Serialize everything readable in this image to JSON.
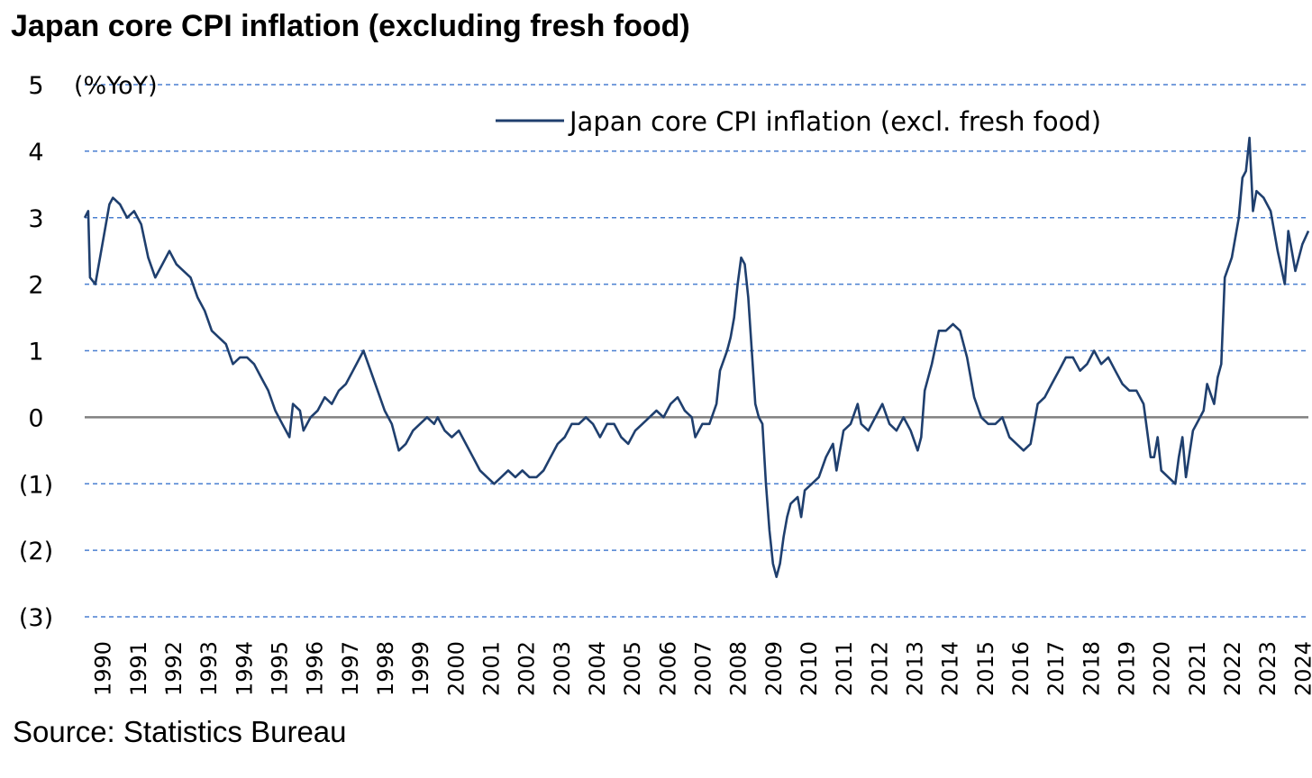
{
  "title": "Japan core CPI inflation (excluding fresh food)",
  "source": "Source: Statistics Bureau",
  "colors": {
    "series": "#1f3f6e",
    "grid": "#4a7fd0",
    "zero": "#808080"
  },
  "chart_data": {
    "type": "line",
    "unit": "(%YoY)",
    "ylim": [
      -3,
      5
    ],
    "xlim": [
      1990,
      2024.67
    ],
    "grid": "horizontal dashed",
    "legend": "top-right",
    "yticks": [
      5,
      4,
      3,
      2,
      1,
      0,
      -1,
      -2,
      -3
    ],
    "ytick_labels": [
      "5",
      "4",
      "3",
      "2",
      "1",
      "0",
      "(1)",
      "(2)",
      "(3)"
    ],
    "xticks": [
      "1990",
      "1991",
      "1992",
      "1993",
      "1994",
      "1995",
      "1996",
      "1997",
      "1998",
      "1999",
      "2000",
      "2001",
      "2002",
      "2003",
      "2004",
      "2005",
      "2006",
      "2007",
      "2008",
      "2009",
      "2010",
      "2011",
      "2012",
      "2013",
      "2014",
      "2015",
      "2016",
      "2017",
      "2018",
      "2019",
      "2020",
      "2021",
      "2022",
      "2023",
      "2024"
    ],
    "series": [
      {
        "name": "Japan core CPI inflation (excl. fresh food)",
        "points": [
          [
            1990.0,
            3.0
          ],
          [
            1990.1,
            3.1
          ],
          [
            1990.15,
            2.1
          ],
          [
            1990.3,
            2.0
          ],
          [
            1990.5,
            2.6
          ],
          [
            1990.7,
            3.2
          ],
          [
            1990.8,
            3.3
          ],
          [
            1991.0,
            3.2
          ],
          [
            1991.2,
            3.0
          ],
          [
            1991.4,
            3.1
          ],
          [
            1991.6,
            2.9
          ],
          [
            1991.8,
            2.4
          ],
          [
            1992.0,
            2.1
          ],
          [
            1992.2,
            2.3
          ],
          [
            1992.4,
            2.5
          ],
          [
            1992.6,
            2.3
          ],
          [
            1992.8,
            2.2
          ],
          [
            1993.0,
            2.1
          ],
          [
            1993.2,
            1.8
          ],
          [
            1993.4,
            1.6
          ],
          [
            1993.6,
            1.3
          ],
          [
            1993.8,
            1.2
          ],
          [
            1994.0,
            1.1
          ],
          [
            1994.2,
            0.8
          ],
          [
            1994.4,
            0.9
          ],
          [
            1994.6,
            0.9
          ],
          [
            1994.8,
            0.8
          ],
          [
            1995.0,
            0.6
          ],
          [
            1995.2,
            0.4
          ],
          [
            1995.4,
            0.1
          ],
          [
            1995.6,
            -0.1
          ],
          [
            1995.8,
            -0.3
          ],
          [
            1995.9,
            0.2
          ],
          [
            1996.1,
            0.1
          ],
          [
            1996.2,
            -0.2
          ],
          [
            1996.4,
            0.0
          ],
          [
            1996.6,
            0.1
          ],
          [
            1996.8,
            0.3
          ],
          [
            1997.0,
            0.2
          ],
          [
            1997.2,
            0.4
          ],
          [
            1997.4,
            0.5
          ],
          [
            1997.6,
            0.7
          ],
          [
            1997.8,
            0.9
          ],
          [
            1997.9,
            1.0
          ],
          [
            1998.1,
            0.7
          ],
          [
            1998.3,
            0.4
          ],
          [
            1998.5,
            0.1
          ],
          [
            1998.7,
            -0.1
          ],
          [
            1998.9,
            -0.5
          ],
          [
            1999.1,
            -0.4
          ],
          [
            1999.3,
            -0.2
          ],
          [
            1999.5,
            -0.1
          ],
          [
            1999.7,
            0.0
          ],
          [
            1999.9,
            -0.1
          ],
          [
            2000.0,
            0.0
          ],
          [
            2000.2,
            -0.2
          ],
          [
            2000.4,
            -0.3
          ],
          [
            2000.6,
            -0.2
          ],
          [
            2000.8,
            -0.4
          ],
          [
            2001.0,
            -0.6
          ],
          [
            2001.2,
            -0.8
          ],
          [
            2001.4,
            -0.9
          ],
          [
            2001.6,
            -1.0
          ],
          [
            2001.8,
            -0.9
          ],
          [
            2002.0,
            -0.8
          ],
          [
            2002.2,
            -0.9
          ],
          [
            2002.4,
            -0.8
          ],
          [
            2002.6,
            -0.9
          ],
          [
            2002.8,
            -0.9
          ],
          [
            2003.0,
            -0.8
          ],
          [
            2003.2,
            -0.6
          ],
          [
            2003.4,
            -0.4
          ],
          [
            2003.6,
            -0.3
          ],
          [
            2003.8,
            -0.1
          ],
          [
            2004.0,
            -0.1
          ],
          [
            2004.2,
            0.0
          ],
          [
            2004.4,
            -0.1
          ],
          [
            2004.6,
            -0.3
          ],
          [
            2004.8,
            -0.1
          ],
          [
            2005.0,
            -0.1
          ],
          [
            2005.2,
            -0.3
          ],
          [
            2005.4,
            -0.4
          ],
          [
            2005.6,
            -0.2
          ],
          [
            2005.8,
            -0.1
          ],
          [
            2006.0,
            0.0
          ],
          [
            2006.2,
            0.1
          ],
          [
            2006.4,
            0.0
          ],
          [
            2006.6,
            0.2
          ],
          [
            2006.8,
            0.3
          ],
          [
            2007.0,
            0.1
          ],
          [
            2007.2,
            0.0
          ],
          [
            2007.3,
            -0.3
          ],
          [
            2007.5,
            -0.1
          ],
          [
            2007.7,
            -0.1
          ],
          [
            2007.9,
            0.2
          ],
          [
            2008.0,
            0.7
          ],
          [
            2008.2,
            1.0
          ],
          [
            2008.3,
            1.2
          ],
          [
            2008.4,
            1.5
          ],
          [
            2008.5,
            2.0
          ],
          [
            2008.6,
            2.4
          ],
          [
            2008.7,
            2.3
          ],
          [
            2008.8,
            1.8
          ],
          [
            2008.9,
            1.0
          ],
          [
            2009.0,
            0.2
          ],
          [
            2009.1,
            0.0
          ],
          [
            2009.2,
            -0.1
          ],
          [
            2009.3,
            -1.0
          ],
          [
            2009.4,
            -1.7
          ],
          [
            2009.5,
            -2.2
          ],
          [
            2009.6,
            -2.4
          ],
          [
            2009.7,
            -2.2
          ],
          [
            2009.8,
            -1.8
          ],
          [
            2009.9,
            -1.5
          ],
          [
            2010.0,
            -1.3
          ],
          [
            2010.2,
            -1.2
          ],
          [
            2010.3,
            -1.5
          ],
          [
            2010.4,
            -1.1
          ],
          [
            2010.6,
            -1.0
          ],
          [
            2010.8,
            -0.9
          ],
          [
            2011.0,
            -0.6
          ],
          [
            2011.2,
            -0.4
          ],
          [
            2011.3,
            -0.8
          ],
          [
            2011.5,
            -0.2
          ],
          [
            2011.7,
            -0.1
          ],
          [
            2011.9,
            0.2
          ],
          [
            2012.0,
            -0.1
          ],
          [
            2012.2,
            -0.2
          ],
          [
            2012.4,
            0.0
          ],
          [
            2012.6,
            0.2
          ],
          [
            2012.8,
            -0.1
          ],
          [
            2013.0,
            -0.2
          ],
          [
            2013.2,
            0.0
          ],
          [
            2013.4,
            -0.2
          ],
          [
            2013.6,
            -0.5
          ],
          [
            2013.7,
            -0.3
          ],
          [
            2013.8,
            0.4
          ],
          [
            2014.0,
            0.8
          ],
          [
            2014.2,
            1.3
          ],
          [
            2014.4,
            1.3
          ],
          [
            2014.6,
            1.4
          ],
          [
            2014.8,
            1.3
          ],
          [
            2015.0,
            0.9
          ],
          [
            2015.2,
            0.3
          ],
          [
            2015.4,
            0.0
          ],
          [
            2015.6,
            -0.1
          ],
          [
            2015.8,
            -0.1
          ],
          [
            2016.0,
            0.0
          ],
          [
            2016.2,
            -0.3
          ],
          [
            2016.4,
            -0.4
          ],
          [
            2016.6,
            -0.5
          ],
          [
            2016.8,
            -0.4
          ],
          [
            2017.0,
            0.2
          ],
          [
            2017.2,
            0.3
          ],
          [
            2017.4,
            0.5
          ],
          [
            2017.6,
            0.7
          ],
          [
            2017.8,
            0.9
          ],
          [
            2018.0,
            0.9
          ],
          [
            2018.2,
            0.7
          ],
          [
            2018.4,
            0.8
          ],
          [
            2018.6,
            1.0
          ],
          [
            2018.8,
            0.8
          ],
          [
            2019.0,
            0.9
          ],
          [
            2019.2,
            0.7
          ],
          [
            2019.4,
            0.5
          ],
          [
            2019.6,
            0.4
          ],
          [
            2019.8,
            0.4
          ],
          [
            2020.0,
            0.2
          ],
          [
            2020.2,
            -0.6
          ],
          [
            2020.3,
            -0.6
          ],
          [
            2020.4,
            -0.3
          ],
          [
            2020.5,
            -0.8
          ],
          [
            2020.7,
            -0.9
          ],
          [
            2020.9,
            -1.0
          ],
          [
            2021.0,
            -0.6
          ],
          [
            2021.1,
            -0.3
          ],
          [
            2021.2,
            -0.9
          ],
          [
            2021.4,
            -0.2
          ],
          [
            2021.6,
            0.0
          ],
          [
            2021.7,
            0.1
          ],
          [
            2021.8,
            0.5
          ],
          [
            2022.0,
            0.2
          ],
          [
            2022.1,
            0.6
          ],
          [
            2022.2,
            0.8
          ],
          [
            2022.3,
            2.1
          ],
          [
            2022.5,
            2.4
          ],
          [
            2022.7,
            3.0
          ],
          [
            2022.8,
            3.6
          ],
          [
            2022.9,
            3.7
          ],
          [
            2023.0,
            4.2
          ],
          [
            2023.1,
            3.1
          ],
          [
            2023.2,
            3.4
          ],
          [
            2023.4,
            3.3
          ],
          [
            2023.6,
            3.1
          ],
          [
            2023.7,
            2.8
          ],
          [
            2023.8,
            2.5
          ],
          [
            2024.0,
            2.0
          ],
          [
            2024.1,
            2.8
          ],
          [
            2024.3,
            2.2
          ],
          [
            2024.5,
            2.6
          ],
          [
            2024.67,
            2.8
          ]
        ]
      }
    ]
  }
}
